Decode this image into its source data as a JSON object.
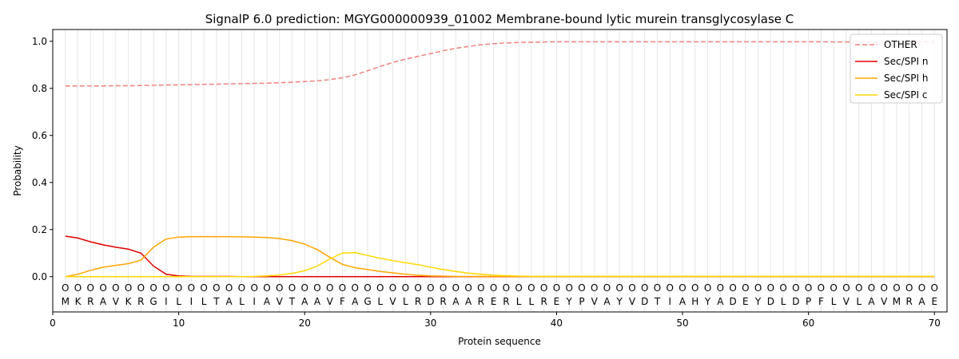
{
  "chart_data": {
    "type": "line",
    "title": "SignalP 6.0 prediction: MGYG000000939_01002 Membrane-bound lytic murein transglycosylase C",
    "xlabel": "Protein sequence",
    "ylabel": "Probability",
    "xlim": [
      0,
      71
    ],
    "ylim": [
      -0.15,
      1.05
    ],
    "xticks": [
      0,
      10,
      20,
      30,
      40,
      50,
      60,
      70
    ],
    "yticks": [
      0.0,
      0.2,
      0.4,
      0.6,
      0.8,
      1.0
    ],
    "xtick_labels": [
      "0",
      "10",
      "20",
      "30",
      "40",
      "50",
      "60",
      "70"
    ],
    "ytick_labels": [
      "0.0",
      "0.2",
      "0.4",
      "0.6",
      "0.8",
      "1.0"
    ],
    "grid": "vertical lines at each residue",
    "legend_position": "top-right",
    "residues": [
      "M",
      "K",
      "R",
      "A",
      "V",
      "K",
      "R",
      "G",
      "I",
      "L",
      "I",
      "L",
      "T",
      "A",
      "L",
      "I",
      "A",
      "V",
      "T",
      "A",
      "A",
      "V",
      "F",
      "A",
      "G",
      "L",
      "V",
      "L",
      "R",
      "D",
      "R",
      "A",
      "A",
      "R",
      "E",
      "R",
      "L",
      "L",
      "R",
      "E",
      "Y",
      "P",
      "V",
      "A",
      "Y",
      "V",
      "D",
      "T",
      "I",
      "A",
      "H",
      "Y",
      "A",
      "D",
      "E",
      "Y",
      "D",
      "L",
      "D",
      "P",
      "F",
      "L",
      "V",
      "L",
      "A",
      "V",
      "M",
      "R",
      "A",
      "E"
    ],
    "residue_marker": "O",
    "series": [
      {
        "name": "OTHER",
        "color": "#f08080",
        "dash": "dashed",
        "values": [
          0.81,
          0.81,
          0.81,
          0.81,
          0.811,
          0.811,
          0.812,
          0.813,
          0.814,
          0.815,
          0.816,
          0.817,
          0.818,
          0.819,
          0.82,
          0.821,
          0.822,
          0.824,
          0.826,
          0.829,
          0.832,
          0.837,
          0.845,
          0.857,
          0.875,
          0.893,
          0.91,
          0.924,
          0.936,
          0.948,
          0.96,
          0.97,
          0.978,
          0.985,
          0.99,
          0.993,
          0.995,
          0.996,
          0.997,
          0.998,
          0.998,
          0.998,
          0.998,
          0.998,
          0.998,
          0.998,
          0.998,
          0.998,
          0.998,
          0.998,
          0.998,
          0.998,
          0.998,
          0.998,
          0.998,
          0.998,
          0.998,
          0.998,
          0.998,
          0.998,
          0.998,
          0.997,
          0.997,
          0.997,
          0.997,
          0.997,
          0.997,
          0.997,
          0.997,
          0.997
        ]
      },
      {
        "name": "Sec/SPI n",
        "color": "#e00000",
        "dash": "solid",
        "values": [
          0.172,
          0.164,
          0.148,
          0.135,
          0.125,
          0.117,
          0.1,
          0.045,
          0.01,
          0.003,
          0.001,
          0.001,
          0.001,
          0.001,
          0,
          0,
          0,
          0,
          0,
          0,
          0,
          0,
          0,
          0,
          0,
          0,
          0,
          0,
          0,
          0,
          0,
          0,
          0,
          0,
          0,
          0,
          0,
          0,
          0,
          0,
          0,
          0,
          0,
          0,
          0,
          0,
          0,
          0,
          0,
          0,
          0,
          0,
          0,
          0,
          0,
          0,
          0,
          0,
          0,
          0,
          0,
          0,
          0,
          0,
          0,
          0,
          0,
          0,
          0,
          0
        ]
      },
      {
        "name": "Sec/SPI h",
        "color": "#ffa500",
        "dash": "solid",
        "values": [
          0.0,
          0.01,
          0.027,
          0.04,
          0.048,
          0.055,
          0.07,
          0.125,
          0.16,
          0.168,
          0.17,
          0.17,
          0.17,
          0.17,
          0.169,
          0.168,
          0.166,
          0.162,
          0.153,
          0.138,
          0.115,
          0.082,
          0.052,
          0.038,
          0.03,
          0.022,
          0.016,
          0.01,
          0.006,
          0.003,
          0.002,
          0.001,
          0.001,
          0.001,
          0.001,
          0.001,
          0.001,
          0.001,
          0.001,
          0.001,
          0.001,
          0.001,
          0.001,
          0.001,
          0.001,
          0.001,
          0.001,
          0.001,
          0.001,
          0.001,
          0.001,
          0.001,
          0.001,
          0.001,
          0.001,
          0.001,
          0.001,
          0.001,
          0.001,
          0.001,
          0.001,
          0.001,
          0.001,
          0.001,
          0.001,
          0.001,
          0.001,
          0.001,
          0.001,
          0.001
        ]
      },
      {
        "name": "Sec/SPI c",
        "color": "#ffd700",
        "dash": "solid",
        "values": [
          0,
          0,
          0,
          0,
          0,
          0,
          0,
          0,
          0,
          0,
          0,
          0,
          0,
          0,
          0,
          0.001,
          0.003,
          0.007,
          0.014,
          0.025,
          0.045,
          0.075,
          0.1,
          0.102,
          0.09,
          0.078,
          0.068,
          0.059,
          0.051,
          0.04,
          0.03,
          0.022,
          0.015,
          0.01,
          0.006,
          0.004,
          0.002,
          0.001,
          0.001,
          0.001,
          0.001,
          0.001,
          0.001,
          0.001,
          0.001,
          0.001,
          0.001,
          0.001,
          0.001,
          0.001,
          0.001,
          0.001,
          0.001,
          0.001,
          0.001,
          0.001,
          0.001,
          0.001,
          0.001,
          0.001,
          0.001,
          0.001,
          0.001,
          0.001,
          0.001,
          0.001,
          0.001,
          0.001,
          0.001,
          0.001
        ]
      }
    ]
  }
}
